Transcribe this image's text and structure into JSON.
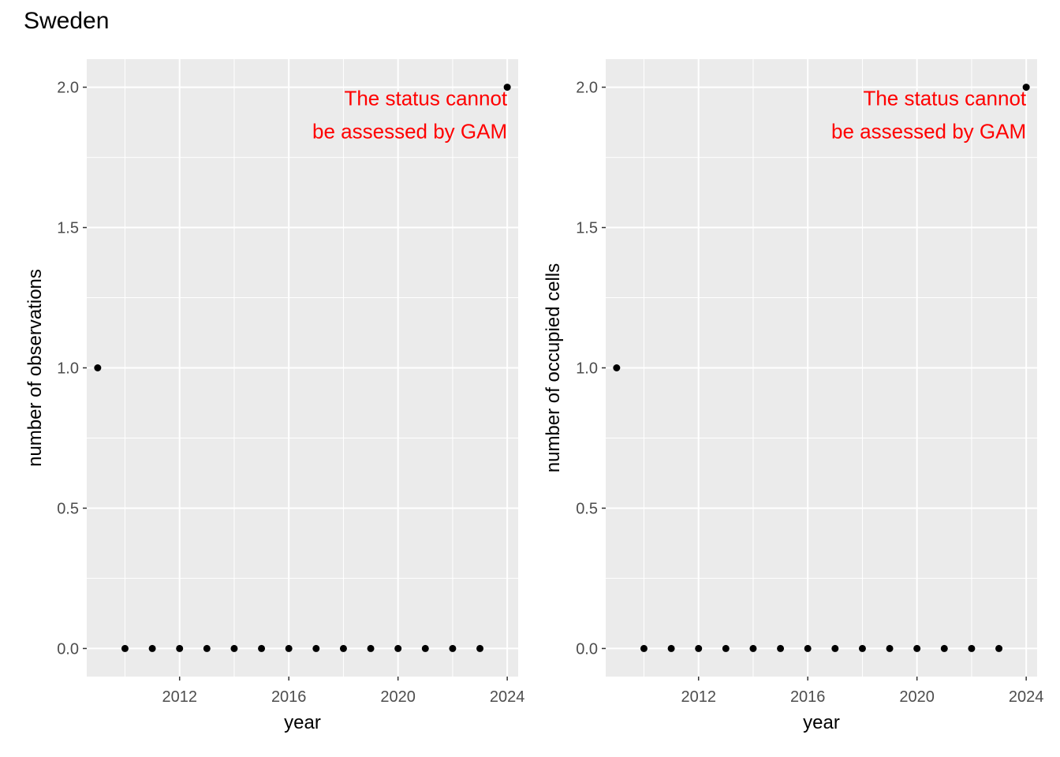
{
  "page": {
    "title": "Sweden"
  },
  "colors": {
    "panel_bg": "#ebebeb",
    "grid": "#ffffff",
    "point": "#000000",
    "annotation": "#ff0000"
  },
  "chart_data": [
    {
      "type": "scatter",
      "xlabel": "year",
      "ylabel": "number of observations",
      "x": [
        2009,
        2010,
        2011,
        2012,
        2013,
        2014,
        2015,
        2016,
        2017,
        2018,
        2019,
        2020,
        2021,
        2022,
        2023,
        2024
      ],
      "y": [
        1,
        0,
        0,
        0,
        0,
        0,
        0,
        0,
        0,
        0,
        0,
        0,
        0,
        0,
        0,
        2
      ],
      "xlim": [
        2008.6,
        2024.4
      ],
      "ylim": [
        -0.1,
        2.1
      ],
      "xticks": [
        2012,
        2016,
        2020,
        2024
      ],
      "xtick_labels": [
        "2012",
        "2016",
        "2020",
        "2024"
      ],
      "yticks": [
        0,
        0.5,
        1,
        1.5,
        2
      ],
      "ytick_labels": [
        "0.0",
        "0.5",
        "1.0",
        "1.5",
        "2.0"
      ],
      "grid": true,
      "annotation": {
        "lines": [
          "The status cannot",
          "be assessed by GAM"
        ],
        "x": 2024,
        "y": 2
      }
    },
    {
      "type": "scatter",
      "xlabel": "year",
      "ylabel": "number of occupied cells",
      "x": [
        2009,
        2010,
        2011,
        2012,
        2013,
        2014,
        2015,
        2016,
        2017,
        2018,
        2019,
        2020,
        2021,
        2022,
        2023,
        2024
      ],
      "y": [
        1,
        0,
        0,
        0,
        0,
        0,
        0,
        0,
        0,
        0,
        0,
        0,
        0,
        0,
        0,
        2
      ],
      "xlim": [
        2008.6,
        2024.4
      ],
      "ylim": [
        -0.1,
        2.1
      ],
      "xticks": [
        2012,
        2016,
        2020,
        2024
      ],
      "xtick_labels": [
        "2012",
        "2016",
        "2020",
        "2024"
      ],
      "yticks": [
        0,
        0.5,
        1,
        1.5,
        2
      ],
      "ytick_labels": [
        "0.0",
        "0.5",
        "1.0",
        "1.5",
        "2.0"
      ],
      "grid": true,
      "annotation": {
        "lines": [
          "The status cannot",
          "be assessed by GAM"
        ],
        "x": 2024,
        "y": 2
      }
    }
  ]
}
